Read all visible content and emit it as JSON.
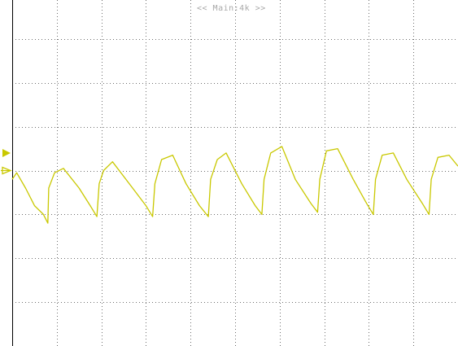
{
  "screen": {
    "header": "<< Main:4k >>",
    "trace_color": "#c9c800",
    "grid_color": "#6e6e6e",
    "frame_color": "#000000",
    "background": "#ffffff",
    "icons": [
      "trigger-level-marker-icon",
      "channel-1-ground-marker-icon"
    ]
  },
  "chart_data": {
    "type": "line",
    "title": "",
    "xlabel": "",
    "ylabel": "",
    "grid": "on",
    "legend": "none",
    "xlim": [
      0,
      10
    ],
    "ylim": [
      -4,
      4
    ],
    "x_divisions": 10,
    "y_divisions": 8,
    "trigger_level": 0.4,
    "series": [
      {
        "name": "",
        "color": "#c9c800",
        "x": [
          0.0,
          0.1,
          0.3,
          0.5,
          0.7,
          0.8,
          0.82,
          0.95,
          1.15,
          1.5,
          1.75,
          1.9,
          1.95,
          2.05,
          2.25,
          2.7,
          3.0,
          3.15,
          3.2,
          3.35,
          3.6,
          3.9,
          4.2,
          4.4,
          4.45,
          4.6,
          4.8,
          5.15,
          5.45,
          5.6,
          5.65,
          5.8,
          6.05,
          6.35,
          6.7,
          6.85,
          6.9,
          7.05,
          7.3,
          7.65,
          7.95,
          8.1,
          8.15,
          8.3,
          8.55,
          8.85,
          9.2,
          9.35,
          9.4,
          9.55,
          9.8,
          10.0
        ],
        "y": [
          -0.2,
          -0.05,
          -0.4,
          -0.8,
          -1.0,
          -1.2,
          -0.4,
          -0.05,
          0.05,
          -0.4,
          -0.8,
          -1.05,
          -0.3,
          0.0,
          0.2,
          -0.4,
          -0.8,
          -1.05,
          -0.3,
          0.25,
          0.35,
          -0.3,
          -0.8,
          -1.05,
          -0.2,
          0.25,
          0.4,
          -0.3,
          -0.8,
          -1.0,
          -0.2,
          0.4,
          0.55,
          -0.2,
          -0.75,
          -0.95,
          -0.2,
          0.45,
          0.5,
          -0.2,
          -0.75,
          -1.0,
          -0.2,
          0.35,
          0.4,
          -0.2,
          -0.75,
          -1.0,
          -0.2,
          0.3,
          0.35,
          0.1
        ]
      }
    ]
  }
}
